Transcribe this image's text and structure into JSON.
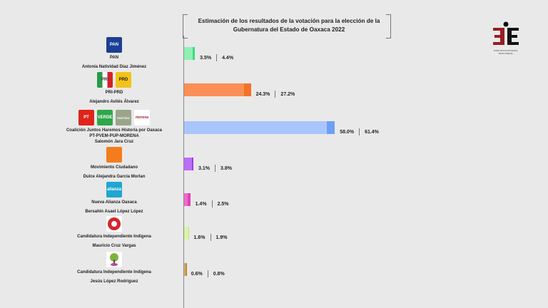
{
  "chart_data": {
    "type": "bar",
    "orientation": "horizontal",
    "title": "Estimación de los resultados de la votación para la elección de la Gubernatura del Estado de Oaxaca 2022",
    "xlim": [
      0,
      100
    ],
    "grid": false,
    "categories": [
      {
        "party": "PAN",
        "candidate": "Antonia Natividad Díaz Jiménez",
        "logos": [
          "PAN"
        ],
        "low": 3.5,
        "high": 4.4,
        "low_label": "3.5%",
        "high_label": "4.4%",
        "color": "#8ff0b4",
        "dark": "#3fd97f"
      },
      {
        "party": "PRI-PRD",
        "candidate": "Alejandro Avilés Álvarez",
        "logos": [
          "PRI",
          "PRD"
        ],
        "low": 24.3,
        "high": 27.2,
        "low_label": "24.3%",
        "high_label": "27.2%",
        "color": "#fb8f55",
        "dark": "#f5702c"
      },
      {
        "party": "Coalición Juntos Haremos Historia por Oaxaca",
        "party2": "PT-PVEM-PUP-MORENA",
        "candidate": "Salomón Jara Cruz",
        "logos": [
          "PT",
          "VERDE",
          "PUP",
          "morena"
        ],
        "low": 58.0,
        "high": 61.4,
        "low_label": "58.0%",
        "high_label": "61.4%",
        "color": "#a8c6fb",
        "dark": "#6f9ff5"
      },
      {
        "party": "Movimiento Ciudadano",
        "candidate": "Dulce Alejandra García Morlan",
        "logos": [
          "MC"
        ],
        "low": 3.1,
        "high": 3.8,
        "low_label": "3.1%",
        "high_label": "3.8%",
        "color": "#bb6ef8",
        "dark": "#9a3fe6"
      },
      {
        "party": "Nueva Alianza Oaxaca",
        "candidate": "Bersahín Asael López López",
        "logos": [
          "NA"
        ],
        "low": 1.4,
        "high": 2.5,
        "low_label": "1.4%",
        "high_label": "2.5%",
        "color": "#f06ad0",
        "dark": "#e040b8"
      },
      {
        "party": "Candidatura Independiente Indígena",
        "candidate": "Mauricio Cruz Vargas",
        "logos": [
          "IND1"
        ],
        "low": 1.6,
        "high": 1.9,
        "low_label": "1.6%",
        "high_label": "1.9%",
        "color": "#daf2a6",
        "dark": "#c4e680"
      },
      {
        "party": "Candidatura Independiente Indígena",
        "candidate": "Jesús López Rodríguez",
        "logos": [
          "IND2"
        ],
        "low": 0.6,
        "high": 0.8,
        "low_label": "0.6%",
        "high_label": "0.8%",
        "color": "#d6b06a",
        "dark": "#b88a3a"
      }
    ]
  },
  "logo_colors": {
    "PAN": "#1a3f94",
    "PRI": "#d0d0d0",
    "PRD": "#f2c318",
    "PT": "#e0241b",
    "VERDE": "#2ea84a",
    "PUP": "#9aa58a",
    "morena": "#ffffff",
    "MC": "#f57c1c",
    "NA": "#20a6d0",
    "IND1": "#ffffff",
    "IND2": "#ffffff"
  },
  "logo_text": {
    "PAN": "PAN",
    "PRI": "PRI",
    "PRD": "PRD",
    "PT": "PT",
    "VERDE": "VERDE",
    "PUP": "PARTIDO",
    "morena": "morena",
    "MC": "",
    "NA": "alianza",
    "IND1": "",
    "IND2": ""
  },
  "institution": {
    "logo": "IEEPCO",
    "name": "INSTITUTO ESTATAL ELECTORAL"
  }
}
